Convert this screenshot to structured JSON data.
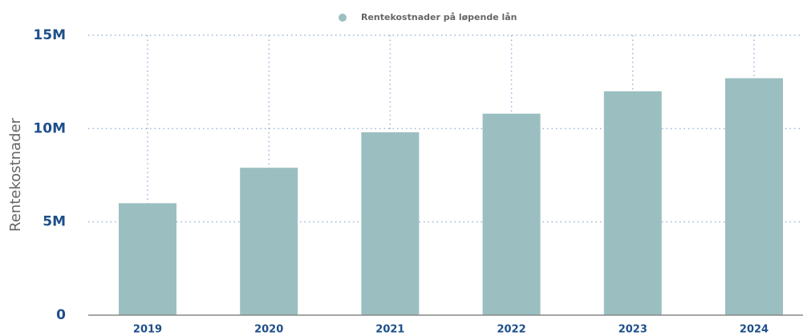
{
  "chart_data": {
    "type": "bar",
    "y_label": "Rentekostnader",
    "categories": [
      "2019",
      "2020",
      "2021",
      "2022",
      "2023",
      "2024"
    ],
    "series": [
      {
        "name": "Rentekostnader på løpende lån",
        "color": "#9bbfc0",
        "values": [
          6000000,
          7900000,
          9800000,
          10800000,
          12000000,
          12700000
        ]
      }
    ],
    "ylim": [
      0,
      15000000
    ],
    "yticks": [
      0,
      {
        "value": 5000000,
        "label": "5M"
      },
      {
        "value": 10000000,
        "label": "10M"
      },
      {
        "value": 15000000,
        "label": "15M"
      }
    ],
    "grid": true,
    "legend": "top"
  }
}
